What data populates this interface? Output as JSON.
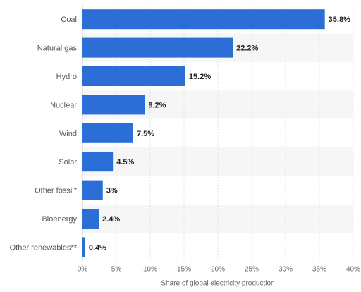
{
  "chart_data": {
    "type": "bar",
    "orientation": "horizontal",
    "categories": [
      "Coal",
      "Natural gas",
      "Hydro",
      "Nuclear",
      "Wind",
      "Solar",
      "Other fossil*",
      "Bioenergy",
      "Other renewables**"
    ],
    "values": [
      35.8,
      22.2,
      15.2,
      9.2,
      7.5,
      4.5,
      3,
      2.4,
      0.4
    ],
    "value_labels": [
      "35.8%",
      "22.2%",
      "15.2%",
      "9.2%",
      "7.5%",
      "4.5%",
      "3%",
      "2.4%",
      "0.4%"
    ],
    "xlabel": "Share of global electricity production",
    "xlim": [
      0,
      40
    ],
    "xticks": [
      0,
      5,
      10,
      15,
      20,
      25,
      30,
      35,
      40
    ],
    "xtick_labels": [
      "0%",
      "5%",
      "10%",
      "15%",
      "20%",
      "25%",
      "30%",
      "35%",
      "40%"
    ],
    "bar_color": "#2b6fd6",
    "stripe_color": "#f6f6f6",
    "grid": "vertical",
    "legend": "none"
  }
}
